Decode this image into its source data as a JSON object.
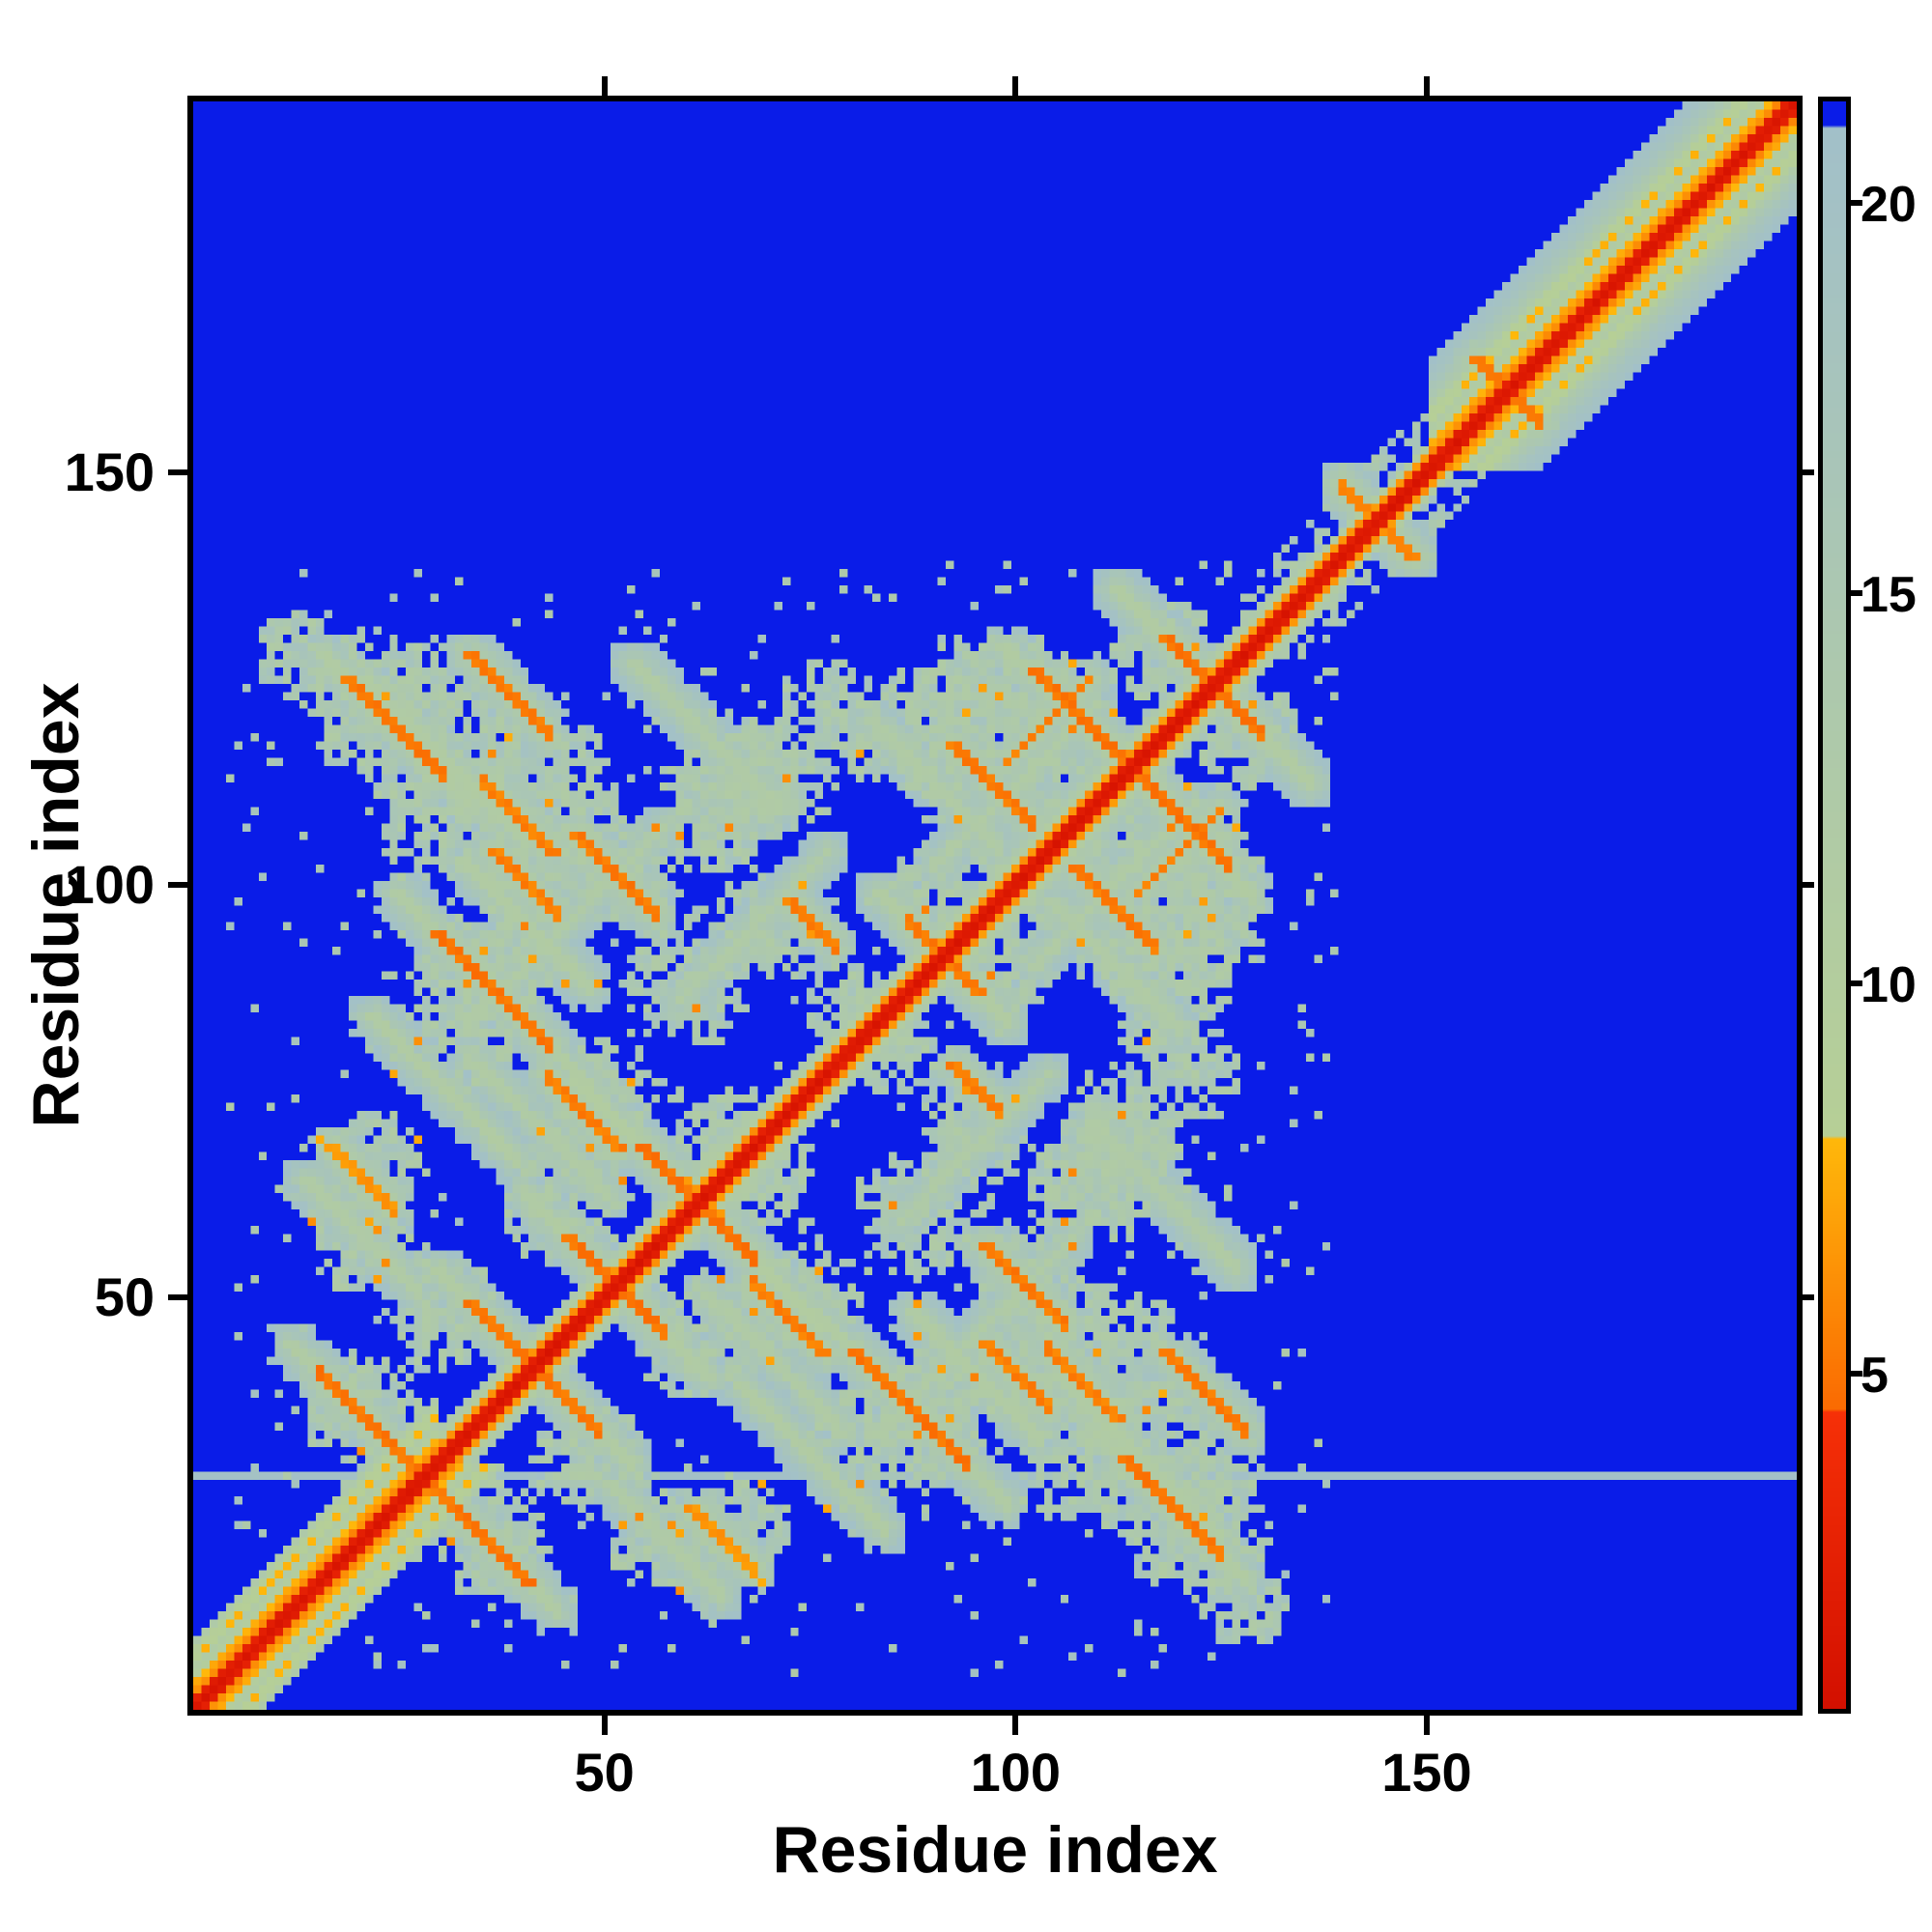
{
  "chart_data": {
    "type": "heatmap",
    "title": "",
    "xlabel": "Residue index",
    "ylabel": "Residue index",
    "x_range": [
      0,
      195
    ],
    "y_range": [
      0,
      195
    ],
    "x_ticks": [
      50,
      100,
      150
    ],
    "y_ticks": [
      50,
      100,
      150
    ],
    "grid": false,
    "background": "#ffffff",
    "description": "Symmetric protein residue-residue distance map: red diagonal (shortest distances), orange near-contact streaks, pale sage-green medium distances, royal-blue clipped background; broad helix band in residues ~150-195",
    "colorbar": {
      "position": "right",
      "ticks": [
        5,
        10,
        15,
        20
      ],
      "vmin": 0.7,
      "vmax": 21.3
    },
    "colormap": {
      "blue": "#0a1ce8",
      "blue_min": 21.0,
      "red_low": "#d31000",
      "red_high": "#f63007",
      "red_max": 4.5,
      "orange_low": "#fa6a02",
      "orange_high": "#ffb80a",
      "orange_max": 8.0,
      "green_low": "#b6cf96",
      "green_high": "#a2c0c9",
      "background_value": 30
    },
    "matrix_model": {
      "n_residues": 196,
      "noise_seed": 1337,
      "diagonal_segments": [
        {
          "start": 0,
          "end": 14,
          "type": "helix",
          "halfwidth": 8
        },
        {
          "start": 14,
          "end": 30,
          "type": "helix",
          "halfwidth": 8
        },
        {
          "start": 30,
          "end": 56,
          "type": "coil",
          "halfwidth": 4
        },
        {
          "start": 56,
          "end": 68,
          "type": "coil",
          "halfwidth": 5
        },
        {
          "start": 68,
          "end": 100,
          "type": "coil",
          "halfwidth": 4
        },
        {
          "start": 100,
          "end": 113,
          "type": "coil",
          "halfwidth": 5
        },
        {
          "start": 113,
          "end": 137,
          "type": "coil",
          "halfwidth": 4
        },
        {
          "start": 137,
          "end": 151,
          "type": "coil",
          "halfwidth": 3
        },
        {
          "start": 151,
          "end": 196,
          "type": "helix",
          "halfwidth": 13
        }
      ],
      "contact_streaks": [
        {
          "x": 21,
          "y": 34,
          "len": 13,
          "dir": -1,
          "v": 5.0
        },
        {
          "x": 38,
          "y": 44,
          "len": 10,
          "dir": -1,
          "v": 5.2
        },
        {
          "x": 50,
          "y": 52,
          "len": 10,
          "dir": -1,
          "v": 5.0
        },
        {
          "x": 61,
          "y": 61,
          "len": 14,
          "dir": -1,
          "v": 5.0
        },
        {
          "x": 47,
          "y": 72,
          "len": 9,
          "dir": -1,
          "v": 5.4
        },
        {
          "x": 36,
          "y": 87,
          "len": 14,
          "dir": -1,
          "v": 5.0
        },
        {
          "x": 51,
          "y": 101,
          "len": 10,
          "dir": -1,
          "v": 5.2
        },
        {
          "x": 39,
          "y": 108,
          "len": 9,
          "dir": -1,
          "v": 5.5
        },
        {
          "x": 24,
          "y": 119,
          "len": 12,
          "dir": -1,
          "v": 5.0
        },
        {
          "x": 38,
          "y": 123,
          "len": 10,
          "dir": -1,
          "v": 5.2
        },
        {
          "x": 40,
          "y": 100,
          "len": 8,
          "dir": -1,
          "v": 5.5
        },
        {
          "x": 20,
          "y": 64,
          "len": 8,
          "dir": -1,
          "v": 6.5
        },
        {
          "x": 75,
          "y": 95,
          "len": 6,
          "dir": -1,
          "v": 5.5
        },
        {
          "x": 91,
          "y": 91,
          "len": 9,
          "dir": -1,
          "v": 5.2
        },
        {
          "x": 97,
          "y": 112,
          "len": 10,
          "dir": -1,
          "v": 5.3
        },
        {
          "x": 108,
          "y": 120,
          "len": 12,
          "dir": -1,
          "v": 5.0
        },
        {
          "x": 104,
          "y": 120,
          "len": 10,
          "dir": 1,
          "v": 5.6
        },
        {
          "x": 124,
          "y": 124,
          "len": 12,
          "dir": -1,
          "v": 5.0
        },
        {
          "x": 144,
          "y": 144,
          "len": 9,
          "dir": -1,
          "v": 6.0
        },
        {
          "x": 160,
          "y": 160,
          "len": 8,
          "dir": -1,
          "v": 5.5
        }
      ],
      "green_streaks": [
        {
          "x": 61,
          "y": 61,
          "len": 30,
          "dir": -1,
          "v": 11.0
        },
        {
          "x": 124,
          "y": 124,
          "len": 24,
          "dir": -1,
          "v": 11.5
        },
        {
          "x": 91,
          "y": 91,
          "len": 16,
          "dir": -1,
          "v": 11.5
        },
        {
          "x": 50,
          "y": 52,
          "len": 20,
          "dir": -1,
          "v": 11.5
        },
        {
          "x": 38,
          "y": 44,
          "len": 18,
          "dir": -1,
          "v": 11.5
        },
        {
          "x": 21,
          "y": 34,
          "len": 20,
          "dir": -1,
          "v": 11.5
        },
        {
          "x": 36,
          "y": 87,
          "len": 24,
          "dir": -1,
          "v": 11.5
        },
        {
          "x": 108,
          "y": 119,
          "len": 20,
          "dir": -1,
          "v": 11.5
        },
        {
          "x": 24,
          "y": 119,
          "len": 18,
          "dir": -1,
          "v": 11.5
        },
        {
          "x": 45,
          "y": 95,
          "len": 24,
          "dir": 1,
          "v": 12.0
        },
        {
          "x": 100,
          "y": 112,
          "len": 20,
          "dir": 1,
          "v": 12.0
        },
        {
          "x": 42,
          "y": 70,
          "len": 16,
          "dir": -1,
          "v": 12.0
        },
        {
          "x": 40,
          "y": 95,
          "len": 14,
          "dir": -1,
          "v": 12.0
        },
        {
          "x": 75,
          "y": 30,
          "len": 18,
          "dir": -1,
          "v": 11.5
        },
        {
          "x": 115,
          "y": 30,
          "len": 20,
          "dir": -1,
          "v": 11.5
        },
        {
          "x": 95,
          "y": 40,
          "len": 16,
          "dir": -1,
          "v": 11.5
        },
        {
          "x": 57,
          "y": 20,
          "len": 14,
          "dir": -1,
          "v": 12.0
        },
        {
          "x": 68,
          "y": 95,
          "len": 18,
          "dir": 1,
          "v": 12.0
        },
        {
          "x": 118,
          "y": 62,
          "len": 18,
          "dir": -1,
          "v": 12.0
        },
        {
          "x": 112,
          "y": 90,
          "len": 16,
          "dir": -1,
          "v": 12.0
        }
      ],
      "blobs": [
        {
          "x": 22,
          "y": 122,
          "rx": 9,
          "ry": 10
        },
        {
          "x": 12,
          "y": 128,
          "rx": 5,
          "ry": 6
        },
        {
          "x": 30,
          "y": 108,
          "rx": 8,
          "ry": 9
        },
        {
          "x": 42,
          "y": 112,
          "rx": 10,
          "ry": 9
        },
        {
          "x": 52,
          "y": 102,
          "rx": 8,
          "ry": 7
        },
        {
          "x": 36,
          "y": 90,
          "rx": 8,
          "ry": 8
        },
        {
          "x": 22,
          "y": 65,
          "rx": 6,
          "ry": 8
        },
        {
          "x": 30,
          "y": 48,
          "rx": 7,
          "ry": 7
        },
        {
          "x": 20,
          "y": 36,
          "rx": 8,
          "ry": 7
        },
        {
          "x": 45,
          "y": 62,
          "rx": 8,
          "ry": 9
        },
        {
          "x": 50,
          "y": 75,
          "rx": 7,
          "ry": 7
        },
        {
          "x": 60,
          "y": 88,
          "rx": 8,
          "ry": 8
        },
        {
          "x": 70,
          "y": 95,
          "rx": 7,
          "ry": 7
        },
        {
          "x": 63,
          "y": 108,
          "rx": 7,
          "ry": 7
        },
        {
          "x": 70,
          "y": 112,
          "rx": 8,
          "ry": 8
        },
        {
          "x": 78,
          "y": 120,
          "rx": 8,
          "ry": 8
        },
        {
          "x": 90,
          "y": 118,
          "rx": 9,
          "ry": 9
        },
        {
          "x": 105,
          "y": 115,
          "rx": 9,
          "ry": 9
        },
        {
          "x": 92,
          "y": 100,
          "rx": 7,
          "ry": 6
        },
        {
          "x": 100,
          "y": 125,
          "rx": 7,
          "ry": 6
        },
        {
          "x": 65,
          "y": 70,
          "rx": 7,
          "ry": 6
        },
        {
          "x": 80,
          "y": 85,
          "rx": 6,
          "ry": 6
        },
        {
          "x": 57,
          "y": 20,
          "rx": 8,
          "ry": 6
        },
        {
          "x": 85,
          "y": 33,
          "rx": 10,
          "ry": 8
        },
        {
          "x": 100,
          "y": 41,
          "rx": 8,
          "ry": 7
        },
        {
          "x": 118,
          "y": 30,
          "rx": 12,
          "ry": 10
        },
        {
          "x": 112,
          "y": 65,
          "rx": 10,
          "ry": 8
        },
        {
          "x": 122,
          "y": 95,
          "rx": 9,
          "ry": 8
        },
        {
          "x": 128,
          "y": 118,
          "rx": 7,
          "ry": 7
        }
      ],
      "speckles": {
        "green_count": 420,
        "green_region": [
          4,
          140
        ],
        "diag_count": 120,
        "diag_region": [
          128,
          166
        ],
        "orange_count": 70,
        "orange_region": [
          14,
          132
        ],
        "hole_count": 260,
        "hole_region": [
          10,
          136
        ]
      },
      "artifact_row": 28
    }
  }
}
